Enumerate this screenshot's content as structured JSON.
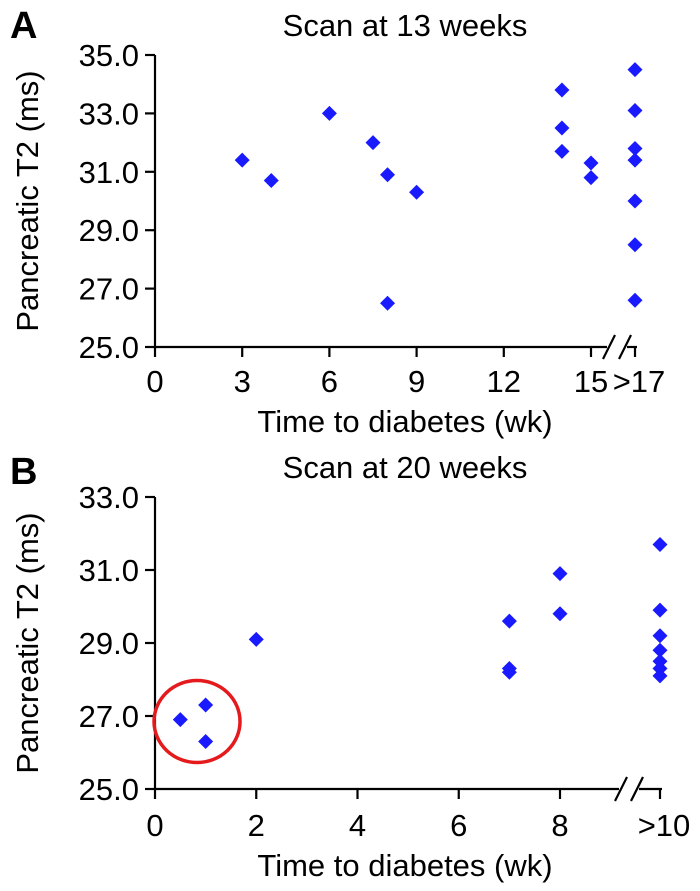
{
  "colors": {
    "marker": "#1a1aff",
    "circle": "#e41a1c",
    "axis": "#000000"
  },
  "chart_data": [
    {
      "type": "scatter",
      "panel_label": "A",
      "title": "Scan at 13 weeks",
      "xlabel": "Time to diabetes (wk)",
      "ylabel": "Pancreatic T2 (ms)",
      "xlim": [
        0,
        17
      ],
      "ylim": [
        25.0,
        35.0
      ],
      "x_ticks": [
        0,
        3,
        6,
        9,
        12,
        15
      ],
      "x_tick_labels": [
        "0",
        "3",
        "6",
        "9",
        "12",
        "15"
      ],
      "x_break_label": ">17",
      "y_ticks": [
        25.0,
        27.0,
        29.0,
        31.0,
        33.0,
        35.0
      ],
      "y_tick_labels": [
        "25.0",
        "27.0",
        "29.0",
        "31.0",
        "33.0",
        "35.0"
      ],
      "axis_break": true,
      "points": [
        {
          "x": 3,
          "y": 31.4
        },
        {
          "x": 4,
          "y": 30.7
        },
        {
          "x": 6,
          "y": 33.0
        },
        {
          "x": 7.5,
          "y": 32.0
        },
        {
          "x": 8,
          "y": 30.9
        },
        {
          "x": 8,
          "y": 26.5
        },
        {
          "x": 9,
          "y": 30.3
        },
        {
          "x": 14,
          "y": 33.8
        },
        {
          "x": 14,
          "y": 32.5
        },
        {
          "x": 14,
          "y": 31.7
        },
        {
          "x": 15,
          "y": 31.3
        },
        {
          "x": 15,
          "y": 30.8
        },
        {
          "x": ">17",
          "y": 34.5
        },
        {
          "x": ">17",
          "y": 33.1
        },
        {
          "x": ">17",
          "y": 31.8
        },
        {
          "x": ">17",
          "y": 31.4
        },
        {
          "x": ">17",
          "y": 30.0
        },
        {
          "x": ">17",
          "y": 28.5
        },
        {
          "x": ">17",
          "y": 26.6
        }
      ]
    },
    {
      "type": "scatter",
      "panel_label": "B",
      "title": "Scan at 20 weeks",
      "xlabel": "Time to diabetes (wk)",
      "ylabel": "Pancreatic T2 (ms)",
      "xlim": [
        0,
        10
      ],
      "ylim": [
        25.0,
        33.0
      ],
      "x_ticks": [
        0,
        2,
        4,
        6,
        8
      ],
      "x_tick_labels": [
        "0",
        "2",
        "4",
        "6",
        "8"
      ],
      "x_break_label": ">10",
      "y_ticks": [
        25.0,
        27.0,
        29.0,
        31.0,
        33.0
      ],
      "y_tick_labels": [
        "25.0",
        "27.0",
        "29.0",
        "31.0",
        "33.0"
      ],
      "axis_break": true,
      "points": [
        {
          "x": 0.5,
          "y": 26.9
        },
        {
          "x": 1,
          "y": 27.3
        },
        {
          "x": 1,
          "y": 26.3
        },
        {
          "x": 2,
          "y": 29.1
        },
        {
          "x": 7,
          "y": 29.6
        },
        {
          "x": 7,
          "y": 28.2
        },
        {
          "x": 7,
          "y": 28.3
        },
        {
          "x": 8,
          "y": 30.9
        },
        {
          "x": 8,
          "y": 29.8
        },
        {
          "x": ">10",
          "y": 31.7
        },
        {
          "x": ">10",
          "y": 29.9
        },
        {
          "x": ">10",
          "y": 29.2
        },
        {
          "x": ">10",
          "y": 28.8
        },
        {
          "x": ">10",
          "y": 28.5
        },
        {
          "x": ">10",
          "y": 28.3
        },
        {
          "x": ">10",
          "y": 28.1
        }
      ],
      "highlight": {
        "shape": "circle",
        "center": [
          0.83,
          26.85
        ],
        "note": "circled points"
      }
    }
  ]
}
